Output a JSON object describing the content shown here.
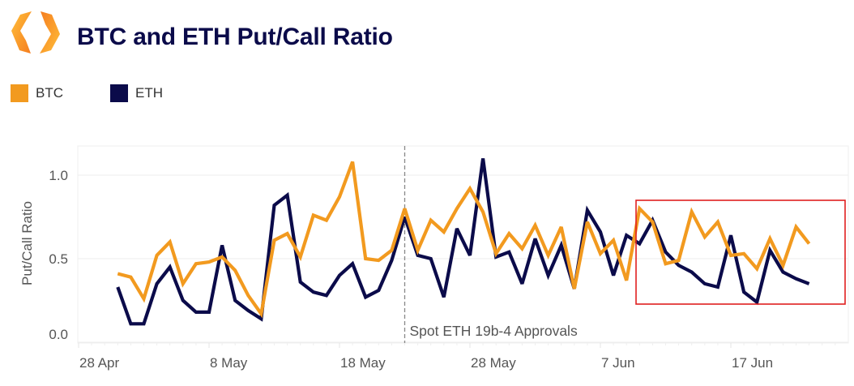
{
  "header": {
    "title": "BTC and ETH Put/Call Ratio",
    "logo_icon": "orange-hexagon-chevrons-logo"
  },
  "legend": [
    {
      "label": "BTC",
      "color": "#f29a1f"
    },
    {
      "label": "ETH",
      "color": "#0b0b4a"
    }
  ],
  "chart_data": {
    "type": "line",
    "title": "BTC and ETH Put/Call Ratio",
    "xlabel": "",
    "ylabel": "Put/Call Ratio",
    "ylim": [
      -0.05,
      1.2
    ],
    "yticks": [
      0.0,
      0.5,
      1.0
    ],
    "ytick_labels": [
      "0.0",
      "0.5",
      "1.0"
    ],
    "xtick_labels": [
      "28 Apr",
      "8 May",
      "18 May",
      "28 May",
      "7 Jun",
      "17 Jun"
    ],
    "grid": true,
    "legend_position": "top-left",
    "x": [
      "1 May",
      "2 May",
      "3 May",
      "4 May",
      "5 May",
      "6 May",
      "7 May",
      "8 May",
      "9 May",
      "10 May",
      "11 May",
      "12 May",
      "13 May",
      "14 May",
      "15 May",
      "16 May",
      "17 May",
      "18 May",
      "19 May",
      "20 May",
      "21 May",
      "22 May",
      "23 May",
      "24 May",
      "25 May",
      "26 May",
      "27 May",
      "28 May",
      "29 May",
      "30 May",
      "31 May",
      "1 Jun",
      "2 Jun",
      "3 Jun",
      "4 Jun",
      "5 Jun",
      "6 Jun",
      "7 Jun",
      "8 Jun",
      "9 Jun",
      "10 Jun",
      "11 Jun",
      "12 Jun",
      "13 Jun",
      "14 Jun",
      "15 Jun",
      "16 Jun",
      "17 Jun",
      "18 Jun",
      "19 Jun",
      "20 Jun",
      "21 Jun",
      "22 Jun",
      "23 Jun"
    ],
    "series": [
      {
        "name": "BTC",
        "color": "#f29a1f",
        "values": [
          0.41,
          0.39,
          0.26,
          0.52,
          0.6,
          0.35,
          0.47,
          0.48,
          0.51,
          0.43,
          0.28,
          0.17,
          0.61,
          0.65,
          0.51,
          0.76,
          0.73,
          0.87,
          1.08,
          0.5,
          0.49,
          0.55,
          0.8,
          0.55,
          0.73,
          0.66,
          0.8,
          0.92,
          0.78,
          0.53,
          0.65,
          0.56,
          0.7,
          0.52,
          0.69,
          0.32,
          0.72,
          0.53,
          0.61,
          0.37,
          0.8,
          0.72,
          0.47,
          0.49,
          0.78,
          0.63,
          0.72,
          0.52,
          0.53,
          0.44,
          0.62,
          0.46,
          0.69,
          0.59
        ]
      },
      {
        "name": "ETH",
        "color": "#0b0b4a",
        "values": [
          0.33,
          0.11,
          0.11,
          0.35,
          0.45,
          0.25,
          0.18,
          0.18,
          0.58,
          0.25,
          0.19,
          0.14,
          0.82,
          0.88,
          0.36,
          0.3,
          0.28,
          0.4,
          0.47,
          0.27,
          0.31,
          0.49,
          0.75,
          0.52,
          0.5,
          0.27,
          0.68,
          0.52,
          1.1,
          0.51,
          0.54,
          0.35,
          0.62,
          0.4,
          0.58,
          0.32,
          0.79,
          0.66,
          0.4,
          0.64,
          0.59,
          0.73,
          0.54,
          0.46,
          0.42,
          0.35,
          0.33,
          0.64,
          0.3,
          0.24,
          0.55,
          0.42,
          0.38,
          0.35
        ]
      }
    ],
    "annotations": [
      {
        "type": "vline",
        "x": "23 May",
        "style": "dashed",
        "label": "Spot ETH 19b-4 Approvals"
      },
      {
        "type": "highlight-box",
        "x_start": "9 Jun",
        "x_end": "25 Jun",
        "y_range": [
          0.23,
          0.85
        ],
        "color": "#e02020"
      }
    ]
  }
}
